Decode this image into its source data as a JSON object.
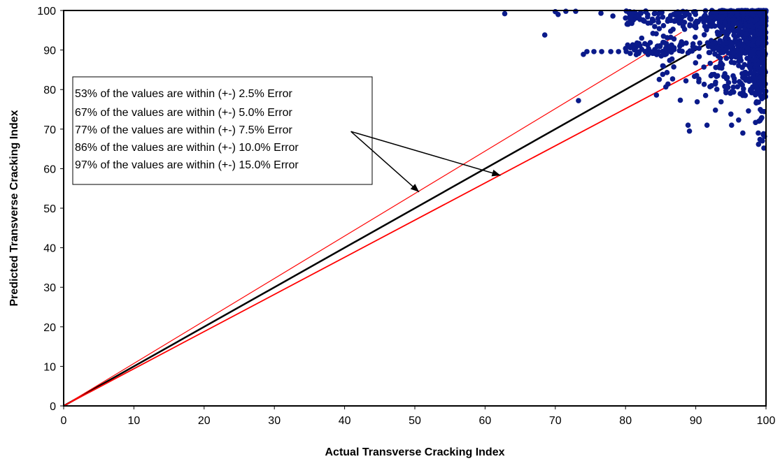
{
  "chart_data": {
    "type": "scatter",
    "title": "",
    "xlabel": "Actual Transverse Cracking Index",
    "ylabel": "Predicted Transverse Cracking Index",
    "xlim": [
      0,
      100
    ],
    "ylim": [
      0,
      100
    ],
    "x_ticks": [
      "0",
      "10",
      "20",
      "30",
      "40",
      "50",
      "60",
      "70",
      "80",
      "90",
      "100"
    ],
    "y_ticks": [
      "0",
      "10",
      "20",
      "30",
      "40",
      "50",
      "60",
      "70",
      "80",
      "90",
      "100"
    ],
    "grid": false,
    "legend": "none",
    "colors": {
      "points": "#0a1a8a",
      "equality_line": "#000000",
      "error_lines": "#ff0000",
      "frame": "#000000"
    },
    "series": [
      {
        "type": "scatter",
        "values": [
          [
            62.8,
            99.2
          ],
          [
            68.5,
            93.8
          ],
          [
            70.0,
            99.7
          ],
          [
            70.4,
            99.0
          ],
          [
            71.5,
            99.8
          ],
          [
            73.3,
            77.2
          ],
          [
            74.0,
            88.9
          ],
          [
            74.5,
            89.6
          ],
          [
            75.5,
            89.6
          ],
          [
            76.6,
            89.6
          ],
          [
            77.9,
            89.6
          ],
          [
            79.0,
            89.6
          ],
          [
            80.1,
            89.6
          ],
          [
            72.9,
            99.8
          ],
          [
            76.5,
            99.3
          ],
          [
            78.2,
            98.6
          ],
          [
            80.6,
            99.7
          ],
          [
            84.4,
            78.6
          ],
          [
            85.3,
            86.0
          ],
          [
            85.9,
            84.3
          ],
          [
            86.7,
            82.7
          ],
          [
            87.8,
            77.3
          ],
          [
            88.6,
            82.2
          ],
          [
            88.9,
            71.0
          ],
          [
            89.1,
            69.5
          ],
          [
            91.6,
            71.0
          ],
          [
            88.2,
            96.0
          ],
          [
            86.0,
            97.3
          ],
          [
            84.8,
            95.4
          ],
          [
            83.2,
            96.8
          ],
          [
            81.5,
            98.1
          ],
          [
            86.9,
            92.8
          ],
          [
            85.4,
            93.5
          ],
          [
            83.9,
            94.2
          ],
          [
            82.3,
            93.0
          ],
          [
            95.1,
            71.0
          ],
          [
            96.7,
            69.0
          ],
          [
            99.7,
            65.2
          ],
          [
            94.3,
            79.2
          ],
          [
            93.6,
            76.9
          ],
          [
            91.4,
            78.5
          ],
          [
            90.2,
            76.9
          ],
          [
            92.8,
            74.8
          ],
          [
            97.5,
            74.6
          ],
          [
            99.4,
            72.9
          ],
          [
            98.9,
            69.0
          ],
          [
            96.1,
            72.3
          ],
          [
            95.0,
            73.8
          ]
        ]
      },
      {
        "type": "line",
        "values": [
          [
            0,
            0
          ],
          [
            100,
            100
          ]
        ]
      },
      {
        "type": "line",
        "values": [
          [
            0,
            0
          ],
          [
            94.4,
            88.7
          ]
        ]
      },
      {
        "type": "line",
        "values": [
          [
            0,
            0
          ],
          [
            88.0,
            94.5
          ]
        ]
      }
    ],
    "annotations": [
      "53% of the values are within (+-)  2.5% Error",
      "67% of the values are within (+-)  5.0% Error",
      "77% of the values are within (+-)  7.5% Error",
      "86% of the values are within (+-) 10.0% Error",
      "97% of the values are within (+-) 15.0% Error"
    ],
    "annotation_arrows": [
      {
        "from": [
          40.9,
          69.4
        ],
        "to": [
          50.6,
          54.1
        ]
      },
      {
        "from": [
          40.9,
          69.4
        ],
        "to": [
          62.2,
          58.3
        ]
      }
    ]
  }
}
